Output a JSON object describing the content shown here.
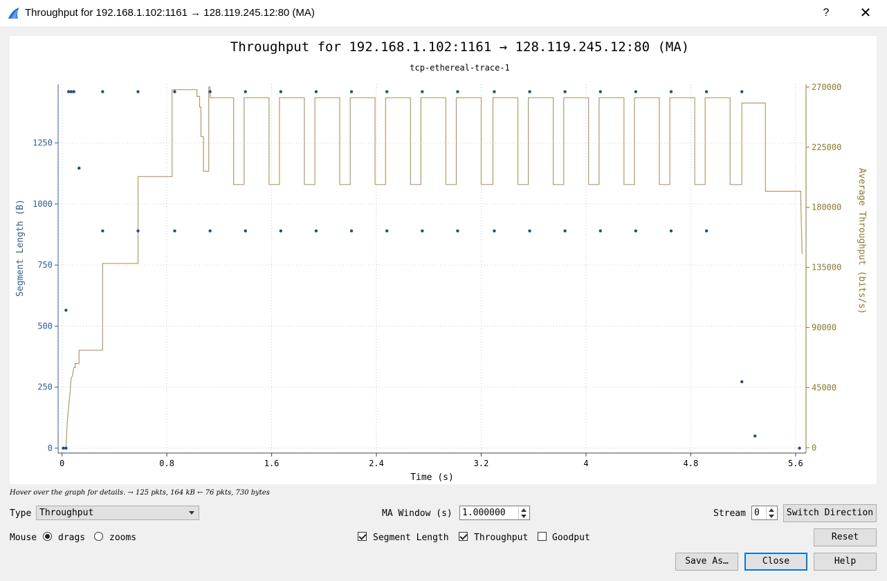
{
  "window": {
    "title": "Throughput for 192.168.1.102:1161 → 128.119.245.12:80 (MA)",
    "help_label": "?",
    "close_label": "✕",
    "icon": "wireshark-fin-icon"
  },
  "chart_data": {
    "type": "scatter+line",
    "title": "Throughput for 192.168.1.102:1161 → 128.119.245.12:80 (MA)",
    "subtitle": "tcp-ethereal-trace-1",
    "xlabel": "Time (s)",
    "ylabel_left": "Segment Length (B)",
    "ylabel_right": "Average Throughput (bits/s)",
    "xlim": [
      -0.03,
      5.68
    ],
    "ylim_left": [
      -20,
      1490
    ],
    "ylim_right": [
      -4000,
      272000
    ],
    "xticks": [
      "0",
      "0.8",
      "1.6",
      "2.4",
      "3.2",
      "4",
      "4.8",
      "5.6"
    ],
    "yticks_left": [
      "0",
      "250",
      "500",
      "750",
      "1000",
      "1250"
    ],
    "yticks_right": [
      "0",
      "45000",
      "90000",
      "135000",
      "180000",
      "225000",
      "270000"
    ],
    "grid": true,
    "colors": {
      "segment": "#1f4e8c",
      "throughput": "#b09a6a",
      "left_axis": "#2e5b8f",
      "right_axis": "#8a7a2e"
    },
    "segment_points": [
      [
        0.01,
        0
      ],
      [
        0.03,
        0
      ],
      [
        0.03,
        565
      ],
      [
        0.05,
        1460
      ],
      [
        0.07,
        1460
      ],
      [
        0.09,
        1460
      ],
      [
        0.13,
        1147
      ],
      [
        0.31,
        1460
      ],
      [
        0.31,
        890
      ],
      [
        0.58,
        1460
      ],
      [
        0.58,
        890
      ],
      [
        0.86,
        1460
      ],
      [
        0.86,
        890
      ],
      [
        1.13,
        1460
      ],
      [
        1.13,
        890
      ],
      [
        1.4,
        1460
      ],
      [
        1.4,
        890
      ],
      [
        1.67,
        1460
      ],
      [
        1.67,
        890
      ],
      [
        1.94,
        1460
      ],
      [
        1.94,
        890
      ],
      [
        2.21,
        1460
      ],
      [
        2.21,
        890
      ],
      [
        2.48,
        1460
      ],
      [
        2.48,
        890
      ],
      [
        2.75,
        1460
      ],
      [
        2.75,
        890
      ],
      [
        3.02,
        1460
      ],
      [
        3.02,
        890
      ],
      [
        3.3,
        1460
      ],
      [
        3.3,
        890
      ],
      [
        3.57,
        1460
      ],
      [
        3.57,
        890
      ],
      [
        3.84,
        1460
      ],
      [
        3.84,
        890
      ],
      [
        4.11,
        1460
      ],
      [
        4.11,
        890
      ],
      [
        4.38,
        1460
      ],
      [
        4.38,
        890
      ],
      [
        4.65,
        1460
      ],
      [
        4.65,
        890
      ],
      [
        4.92,
        1460
      ],
      [
        4.92,
        890
      ],
      [
        5.19,
        1460
      ],
      [
        5.19,
        272
      ],
      [
        5.29,
        50
      ],
      [
        5.63,
        0
      ]
    ],
    "throughput_points": [
      [
        0.03,
        0
      ],
      [
        0.035,
        10000
      ],
      [
        0.04,
        20000
      ],
      [
        0.05,
        30000
      ],
      [
        0.06,
        40000
      ],
      [
        0.07,
        52000
      ],
      [
        0.08,
        54000
      ],
      [
        0.09,
        60000
      ],
      [
        0.1,
        60000
      ],
      [
        0.1,
        63000
      ],
      [
        0.13,
        63000
      ],
      [
        0.13,
        73000
      ],
      [
        0.31,
        73000
      ],
      [
        0.31,
        138000
      ],
      [
        0.58,
        138000
      ],
      [
        0.58,
        203000
      ],
      [
        0.84,
        203000
      ],
      [
        0.84,
        268000
      ],
      [
        1.03,
        268000
      ],
      [
        1.03,
        263000
      ],
      [
        1.05,
        263000
      ],
      [
        1.05,
        255000
      ],
      [
        1.06,
        255000
      ],
      [
        1.06,
        233000
      ],
      [
        1.08,
        233000
      ],
      [
        1.08,
        207000
      ],
      [
        1.12,
        207000
      ],
      [
        1.12,
        270000
      ],
      [
        1.13,
        270000
      ],
      [
        1.13,
        262000
      ],
      [
        1.31,
        262000
      ],
      [
        1.31,
        197000
      ],
      [
        1.39,
        197000
      ],
      [
        1.39,
        262000
      ],
      [
        1.58,
        262000
      ],
      [
        1.58,
        197000
      ],
      [
        1.66,
        197000
      ],
      [
        1.66,
        262000
      ],
      [
        1.85,
        262000
      ],
      [
        1.85,
        197000
      ],
      [
        1.93,
        197000
      ],
      [
        1.93,
        262000
      ],
      [
        2.12,
        262000
      ],
      [
        2.12,
        197000
      ],
      [
        2.2,
        197000
      ],
      [
        2.2,
        262000
      ],
      [
        2.39,
        262000
      ],
      [
        2.39,
        197000
      ],
      [
        2.47,
        197000
      ],
      [
        2.47,
        262000
      ],
      [
        2.66,
        262000
      ],
      [
        2.66,
        197000
      ],
      [
        2.74,
        197000
      ],
      [
        2.74,
        262000
      ],
      [
        2.93,
        262000
      ],
      [
        2.93,
        197000
      ],
      [
        3.01,
        197000
      ],
      [
        3.01,
        262000
      ],
      [
        3.2,
        262000
      ],
      [
        3.2,
        197000
      ],
      [
        3.29,
        197000
      ],
      [
        3.29,
        262000
      ],
      [
        3.48,
        262000
      ],
      [
        3.48,
        197000
      ],
      [
        3.56,
        197000
      ],
      [
        3.56,
        262000
      ],
      [
        3.75,
        262000
      ],
      [
        3.75,
        197000
      ],
      [
        3.83,
        197000
      ],
      [
        3.83,
        262000
      ],
      [
        4.02,
        262000
      ],
      [
        4.02,
        197000
      ],
      [
        4.1,
        197000
      ],
      [
        4.1,
        262000
      ],
      [
        4.29,
        262000
      ],
      [
        4.29,
        197000
      ],
      [
        4.37,
        197000
      ],
      [
        4.37,
        262000
      ],
      [
        4.56,
        262000
      ],
      [
        4.56,
        197000
      ],
      [
        4.64,
        197000
      ],
      [
        4.64,
        262000
      ],
      [
        4.83,
        262000
      ],
      [
        4.83,
        197000
      ],
      [
        4.91,
        197000
      ],
      [
        4.91,
        262000
      ],
      [
        5.1,
        262000
      ],
      [
        5.1,
        197000
      ],
      [
        5.19,
        197000
      ],
      [
        5.19,
        258000
      ],
      [
        5.37,
        258000
      ],
      [
        5.37,
        192000
      ],
      [
        5.64,
        192000
      ],
      [
        5.64,
        185000
      ],
      [
        5.65,
        145000
      ]
    ]
  },
  "status": {
    "hint": "Hover over the graph for details. → 125 pkts, 164 kB ← 76 pkts, 730 bytes"
  },
  "controls": {
    "type_label": "Type",
    "type_value": "Throughput",
    "ma_window_label": "MA Window (s)",
    "ma_window_value": "1.000000",
    "stream_label": "Stream",
    "stream_value": "0",
    "switch_direction_label": "Switch Direction",
    "mouse_label": "Mouse",
    "mouse_drags_label": "drags",
    "mouse_zooms_label": "zooms",
    "segment_length_label": "Segment Length",
    "throughput_label": "Throughput",
    "goodput_label": "Goodput",
    "reset_label": "Reset",
    "save_as_label": "Save As…",
    "close_label": "Close",
    "help_label": "Help"
  }
}
